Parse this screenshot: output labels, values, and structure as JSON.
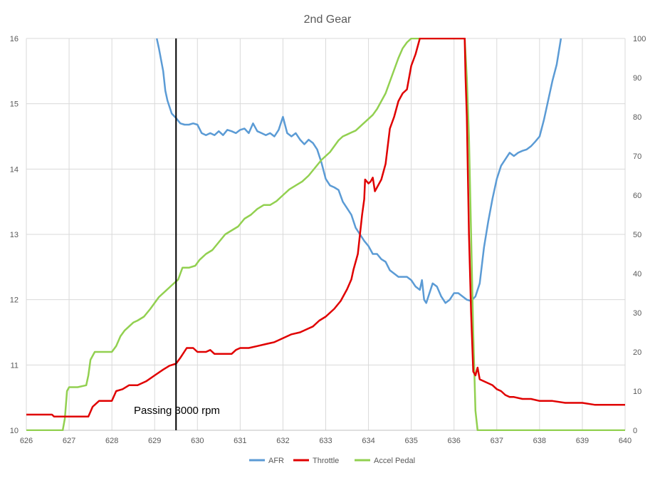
{
  "chart_data": {
    "type": "line",
    "title": "2nd Gear",
    "xlim": [
      626,
      640
    ],
    "x_ticks": [
      "626",
      "627",
      "628",
      "629",
      "630",
      "631",
      "632",
      "633",
      "634",
      "635",
      "636",
      "637",
      "638",
      "639",
      "640"
    ],
    "y_left_lim": [
      10,
      16
    ],
    "y_left_ticks": [
      "10",
      "11",
      "12",
      "13",
      "14",
      "15",
      "16"
    ],
    "y_right_lim": [
      0,
      100
    ],
    "y_right_ticks": [
      "0",
      "10",
      "20",
      "30",
      "40",
      "50",
      "60",
      "70",
      "80",
      "90",
      "100"
    ],
    "grid": true,
    "legend_position": "bottom",
    "annotation": {
      "text": "Passing 3000 rpm",
      "x": 629.5
    },
    "series": [
      {
        "name": "AFR",
        "color": "#5b9bd5",
        "axis": "left",
        "points": [
          [
            629.05,
            16.0
          ],
          [
            629.1,
            15.85
          ],
          [
            629.2,
            15.5
          ],
          [
            629.25,
            15.2
          ],
          [
            629.3,
            15.05
          ],
          [
            629.4,
            14.85
          ],
          [
            629.5,
            14.78
          ],
          [
            629.6,
            14.7
          ],
          [
            629.7,
            14.68
          ],
          [
            629.8,
            14.68
          ],
          [
            629.9,
            14.7
          ],
          [
            630.0,
            14.68
          ],
          [
            630.1,
            14.55
          ],
          [
            630.2,
            14.52
          ],
          [
            630.3,
            14.55
          ],
          [
            630.4,
            14.52
          ],
          [
            630.5,
            14.58
          ],
          [
            630.6,
            14.52
          ],
          [
            630.7,
            14.6
          ],
          [
            630.8,
            14.58
          ],
          [
            630.9,
            14.55
          ],
          [
            631.0,
            14.6
          ],
          [
            631.1,
            14.62
          ],
          [
            631.2,
            14.55
          ],
          [
            631.3,
            14.7
          ],
          [
            631.4,
            14.58
          ],
          [
            631.5,
            14.55
          ],
          [
            631.6,
            14.52
          ],
          [
            631.7,
            14.55
          ],
          [
            631.8,
            14.5
          ],
          [
            631.9,
            14.6
          ],
          [
            632.0,
            14.8
          ],
          [
            632.1,
            14.55
          ],
          [
            632.2,
            14.5
          ],
          [
            632.3,
            14.55
          ],
          [
            632.4,
            14.45
          ],
          [
            632.5,
            14.38
          ],
          [
            632.6,
            14.45
          ],
          [
            632.7,
            14.4
          ],
          [
            632.8,
            14.3
          ],
          [
            632.9,
            14.1
          ],
          [
            633.0,
            13.85
          ],
          [
            633.1,
            13.75
          ],
          [
            633.2,
            13.72
          ],
          [
            633.3,
            13.68
          ],
          [
            633.4,
            13.5
          ],
          [
            633.5,
            13.4
          ],
          [
            633.6,
            13.3
          ],
          [
            633.7,
            13.1
          ],
          [
            633.8,
            13.0
          ],
          [
            633.9,
            12.9
          ],
          [
            634.0,
            12.82
          ],
          [
            634.1,
            12.7
          ],
          [
            634.2,
            12.7
          ],
          [
            634.3,
            12.62
          ],
          [
            634.4,
            12.58
          ],
          [
            634.5,
            12.45
          ],
          [
            634.6,
            12.4
          ],
          [
            634.7,
            12.35
          ],
          [
            634.8,
            12.35
          ],
          [
            634.9,
            12.35
          ],
          [
            635.0,
            12.3
          ],
          [
            635.1,
            12.2
          ],
          [
            635.2,
            12.15
          ],
          [
            635.25,
            12.3
          ],
          [
            635.3,
            12.0
          ],
          [
            635.35,
            11.95
          ],
          [
            635.4,
            12.05
          ],
          [
            635.5,
            12.25
          ],
          [
            635.6,
            12.2
          ],
          [
            635.7,
            12.05
          ],
          [
            635.8,
            11.95
          ],
          [
            635.9,
            12.0
          ],
          [
            636.0,
            12.1
          ],
          [
            636.1,
            12.1
          ],
          [
            636.2,
            12.05
          ],
          [
            636.3,
            12.0
          ],
          [
            636.4,
            11.98
          ],
          [
            636.5,
            12.05
          ],
          [
            636.6,
            12.25
          ],
          [
            636.7,
            12.8
          ],
          [
            636.8,
            13.2
          ],
          [
            636.9,
            13.55
          ],
          [
            637.0,
            13.85
          ],
          [
            637.1,
            14.05
          ],
          [
            637.2,
            14.15
          ],
          [
            637.3,
            14.25
          ],
          [
            637.4,
            14.2
          ],
          [
            637.5,
            14.25
          ],
          [
            637.6,
            14.28
          ],
          [
            637.7,
            14.3
          ],
          [
            637.8,
            14.35
          ],
          [
            637.9,
            14.42
          ],
          [
            638.0,
            14.5
          ],
          [
            638.1,
            14.75
          ],
          [
            638.2,
            15.05
          ],
          [
            638.3,
            15.35
          ],
          [
            638.4,
            15.6
          ],
          [
            638.5,
            16.0
          ]
        ]
      },
      {
        "name": "Throttle",
        "color": "#e00000",
        "axis": "right",
        "points": [
          [
            626.0,
            4.0
          ],
          [
            626.6,
            4.0
          ],
          [
            626.65,
            3.5
          ],
          [
            627.0,
            3.5
          ],
          [
            627.2,
            3.5
          ],
          [
            627.45,
            3.5
          ],
          [
            627.55,
            6.0
          ],
          [
            627.7,
            7.5
          ],
          [
            628.0,
            7.5
          ],
          [
            628.1,
            10.0
          ],
          [
            628.25,
            10.5
          ],
          [
            628.4,
            11.5
          ],
          [
            628.6,
            11.5
          ],
          [
            628.8,
            12.5
          ],
          [
            629.0,
            14.0
          ],
          [
            629.2,
            15.5
          ],
          [
            629.35,
            16.5
          ],
          [
            629.5,
            17.0
          ],
          [
            629.6,
            18.5
          ],
          [
            629.75,
            21.0
          ],
          [
            629.9,
            21.0
          ],
          [
            630.0,
            20.0
          ],
          [
            630.2,
            20.0
          ],
          [
            630.3,
            20.5
          ],
          [
            630.4,
            19.5
          ],
          [
            630.6,
            19.5
          ],
          [
            630.8,
            19.5
          ],
          [
            630.9,
            20.5
          ],
          [
            631.0,
            21.0
          ],
          [
            631.2,
            21.0
          ],
          [
            631.4,
            21.5
          ],
          [
            631.6,
            22.0
          ],
          [
            631.8,
            22.5
          ],
          [
            632.0,
            23.5
          ],
          [
            632.2,
            24.5
          ],
          [
            632.4,
            25.0
          ],
          [
            632.6,
            26.0
          ],
          [
            632.7,
            26.5
          ],
          [
            632.85,
            28.0
          ],
          [
            633.0,
            29.0
          ],
          [
            633.2,
            31.0
          ],
          [
            633.35,
            33.0
          ],
          [
            633.5,
            36.0
          ],
          [
            633.6,
            38.5
          ],
          [
            633.65,
            41.0
          ],
          [
            633.75,
            45.0
          ],
          [
            633.8,
            50.0
          ],
          [
            633.85,
            55.0
          ],
          [
            633.9,
            59.0
          ],
          [
            633.92,
            64.0
          ],
          [
            634.0,
            63.0
          ],
          [
            634.05,
            63.5
          ],
          [
            634.1,
            64.5
          ],
          [
            634.15,
            61.0
          ],
          [
            634.2,
            62.0
          ],
          [
            634.3,
            64.0
          ],
          [
            634.4,
            68.0
          ],
          [
            634.5,
            77.0
          ],
          [
            634.6,
            80.0
          ],
          [
            634.7,
            84.0
          ],
          [
            634.8,
            86.0
          ],
          [
            634.9,
            87.0
          ],
          [
            635.0,
            93.0
          ],
          [
            635.1,
            96.0
          ],
          [
            635.2,
            100.0
          ],
          [
            635.6,
            100.0
          ],
          [
            636.25,
            100.0
          ],
          [
            636.27,
            90.0
          ],
          [
            636.3,
            80.0
          ],
          [
            636.35,
            50.0
          ],
          [
            636.4,
            30.0
          ],
          [
            636.45,
            15.0
          ],
          [
            636.5,
            14.0
          ],
          [
            636.55,
            16.0
          ],
          [
            636.6,
            13.0
          ],
          [
            636.7,
            12.5
          ],
          [
            636.8,
            12.0
          ],
          [
            636.9,
            11.5
          ],
          [
            637.0,
            10.5
          ],
          [
            637.1,
            10.0
          ],
          [
            637.2,
            9.0
          ],
          [
            637.3,
            8.5
          ],
          [
            637.4,
            8.5
          ],
          [
            637.6,
            8.0
          ],
          [
            637.8,
            8.0
          ],
          [
            638.0,
            7.5
          ],
          [
            638.3,
            7.5
          ],
          [
            638.6,
            7.0
          ],
          [
            639.0,
            7.0
          ],
          [
            639.3,
            6.5
          ],
          [
            639.6,
            6.5
          ],
          [
            640.0,
            6.5
          ]
        ]
      },
      {
        "name": "Accel Pedal",
        "color": "#92d050",
        "axis": "right",
        "points": [
          [
            626.0,
            0.0
          ],
          [
            626.85,
            0.0
          ],
          [
            626.9,
            3.0
          ],
          [
            626.95,
            10.0
          ],
          [
            627.0,
            11.0
          ],
          [
            627.2,
            11.0
          ],
          [
            627.4,
            11.5
          ],
          [
            627.45,
            14.0
          ],
          [
            627.5,
            18.0
          ],
          [
            627.6,
            20.0
          ],
          [
            627.8,
            20.0
          ],
          [
            628.0,
            20.0
          ],
          [
            628.1,
            21.5
          ],
          [
            628.2,
            24.0
          ],
          [
            628.3,
            25.5
          ],
          [
            628.4,
            26.5
          ],
          [
            628.5,
            27.5
          ],
          [
            628.6,
            28.0
          ],
          [
            628.75,
            29.0
          ],
          [
            628.9,
            31.0
          ],
          [
            629.0,
            32.5
          ],
          [
            629.1,
            34.0
          ],
          [
            629.25,
            35.5
          ],
          [
            629.4,
            37.0
          ],
          [
            629.55,
            38.5
          ],
          [
            629.6,
            40.0
          ],
          [
            629.65,
            41.5
          ],
          [
            629.8,
            41.5
          ],
          [
            629.95,
            42.0
          ],
          [
            630.05,
            43.5
          ],
          [
            630.2,
            45.0
          ],
          [
            630.35,
            46.0
          ],
          [
            630.5,
            48.0
          ],
          [
            630.65,
            50.0
          ],
          [
            630.8,
            51.0
          ],
          [
            630.95,
            52.0
          ],
          [
            631.1,
            54.0
          ],
          [
            631.25,
            55.0
          ],
          [
            631.4,
            56.5
          ],
          [
            631.55,
            57.5
          ],
          [
            631.7,
            57.5
          ],
          [
            631.85,
            58.5
          ],
          [
            632.0,
            60.0
          ],
          [
            632.15,
            61.5
          ],
          [
            632.3,
            62.5
          ],
          [
            632.45,
            63.5
          ],
          [
            632.6,
            65.0
          ],
          [
            632.75,
            67.0
          ],
          [
            632.9,
            69.0
          ],
          [
            633.0,
            70.0
          ],
          [
            633.1,
            71.0
          ],
          [
            633.2,
            72.5
          ],
          [
            633.3,
            74.0
          ],
          [
            633.4,
            75.0
          ],
          [
            633.5,
            75.5
          ],
          [
            633.6,
            76.0
          ],
          [
            633.7,
            76.5
          ],
          [
            633.8,
            77.5
          ],
          [
            633.9,
            78.5
          ],
          [
            634.0,
            79.5
          ],
          [
            634.1,
            80.5
          ],
          [
            634.2,
            82.0
          ],
          [
            634.3,
            84.0
          ],
          [
            634.4,
            86.0
          ],
          [
            634.5,
            89.0
          ],
          [
            634.6,
            92.0
          ],
          [
            634.7,
            95.0
          ],
          [
            634.8,
            97.5
          ],
          [
            634.9,
            99.0
          ],
          [
            635.0,
            100.0
          ],
          [
            635.5,
            100.0
          ],
          [
            636.25,
            100.0
          ],
          [
            636.3,
            90.0
          ],
          [
            636.35,
            75.0
          ],
          [
            636.4,
            50.0
          ],
          [
            636.45,
            25.0
          ],
          [
            636.5,
            5.0
          ],
          [
            636.55,
            0.0
          ],
          [
            637.0,
            0.0
          ],
          [
            638.0,
            0.0
          ],
          [
            639.0,
            0.0
          ],
          [
            640.0,
            0.0
          ]
        ]
      }
    ]
  }
}
